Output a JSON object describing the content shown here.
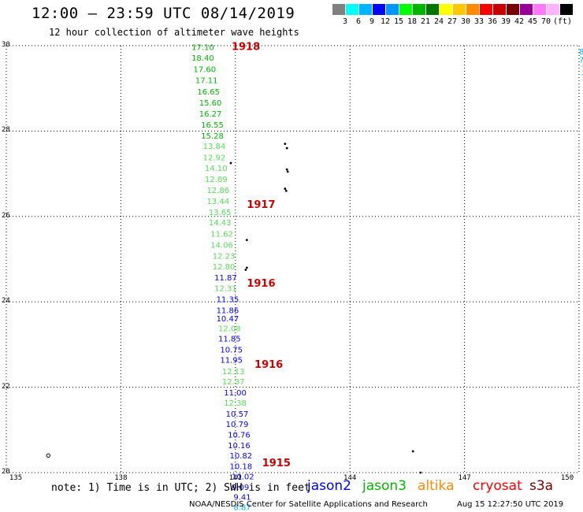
{
  "header": {
    "title": "12:00 — 23:59 UTC 08/14/2019",
    "subtitle": "12 hour collection of altimeter wave heights"
  },
  "legend": {
    "colors": [
      "#808080",
      "#00ffff",
      "#00b4ff",
      "#0000ff",
      "#0096ff",
      "#00ff00",
      "#00b400",
      "#007800",
      "#ffff00",
      "#ffc800",
      "#ff8c00",
      "#ff0000",
      "#c80000",
      "#780000",
      "#960096",
      "#ff78ff",
      "#ffb4ff",
      "#000000"
    ],
    "labels": [
      "3",
      "6",
      "9",
      "12",
      "15",
      "18",
      "21",
      "24",
      "27",
      "30",
      "33",
      "36",
      "39",
      "42",
      "45",
      "70"
    ],
    "unit": "(ft)"
  },
  "axes": {
    "y_ticks": [
      "30",
      "28",
      "26",
      "24",
      "22",
      "20"
    ],
    "x_ticks": [
      "135",
      "138",
      "141",
      "144",
      "147",
      "150"
    ]
  },
  "track_labels": [
    {
      "text": "1918",
      "lon": 140.9,
      "lat": 29.9
    },
    {
      "text": "1917",
      "lon": 141.3,
      "lat": 26.2
    },
    {
      "text": "1916",
      "lon": 141.3,
      "lat": 24.35
    },
    {
      "text": "1916",
      "lon": 141.5,
      "lat": 22.45
    },
    {
      "text": "1915",
      "lon": 141.7,
      "lat": 20.15
    }
  ],
  "wave_heights": [
    {
      "v": "17.10",
      "lon": 139.85,
      "lat": 29.9,
      "c": "#00b400"
    },
    {
      "v": "18.40",
      "lon": 139.85,
      "lat": 29.65,
      "c": "#00b400"
    },
    {
      "v": "17.60",
      "lon": 139.9,
      "lat": 29.38,
      "c": "#00b400"
    },
    {
      "v": "17.11",
      "lon": 139.95,
      "lat": 29.12,
      "c": "#00b400"
    },
    {
      "v": "16.65",
      "lon": 140.0,
      "lat": 28.86,
      "c": "#00b400"
    },
    {
      "v": "15.60",
      "lon": 140.05,
      "lat": 28.6,
      "c": "#00b400"
    },
    {
      "v": "16.27",
      "lon": 140.05,
      "lat": 28.34,
      "c": "#00b400"
    },
    {
      "v": "16.55",
      "lon": 140.1,
      "lat": 28.08,
      "c": "#00b400"
    },
    {
      "v": "15.28",
      "lon": 140.1,
      "lat": 27.82,
      "c": "#00b400"
    },
    {
      "v": "13.84",
      "lon": 140.15,
      "lat": 27.58,
      "c": "#55dd55"
    },
    {
      "v": "12.92",
      "lon": 140.15,
      "lat": 27.32,
      "c": "#55dd55"
    },
    {
      "v": "14.10",
      "lon": 140.2,
      "lat": 27.07,
      "c": "#55dd55"
    },
    {
      "v": "12.89",
      "lon": 140.2,
      "lat": 26.81,
      "c": "#55dd55"
    },
    {
      "v": "12.86",
      "lon": 140.25,
      "lat": 26.55,
      "c": "#55dd55"
    },
    {
      "v": "13.44",
      "lon": 140.25,
      "lat": 26.29,
      "c": "#55dd55"
    },
    {
      "v": "13.65",
      "lon": 140.3,
      "lat": 26.03,
      "c": "#55dd55"
    },
    {
      "v": "14.43",
      "lon": 140.3,
      "lat": 25.79,
      "c": "#55dd55"
    },
    {
      "v": "11.62",
      "lon": 140.35,
      "lat": 25.53,
      "c": "#55dd55"
    },
    {
      "v": "14.06",
      "lon": 140.35,
      "lat": 25.27,
      "c": "#55dd55"
    },
    {
      "v": "12.23",
      "lon": 140.4,
      "lat": 25.01,
      "c": "#55dd55"
    },
    {
      "v": "12.80",
      "lon": 140.4,
      "lat": 24.76,
      "c": "#55dd55"
    },
    {
      "v": "11.87",
      "lon": 140.45,
      "lat": 24.5,
      "c": "#0000ff"
    },
    {
      "v": "12.31",
      "lon": 140.45,
      "lat": 24.25,
      "c": "#55dd55"
    },
    {
      "v": "11.35",
      "lon": 140.5,
      "lat": 23.99,
      "c": "#0000ff"
    },
    {
      "v": "11.86",
      "lon": 140.5,
      "lat": 23.74,
      "c": "#0000ff"
    },
    {
      "v": "10.47",
      "lon": 140.5,
      "lat": 23.54,
      "c": "#0000ff"
    },
    {
      "v": "12.08",
      "lon": 140.55,
      "lat": 23.31,
      "c": "#55dd55"
    },
    {
      "v": "11.85",
      "lon": 140.55,
      "lat": 23.07,
      "c": "#0000ff"
    },
    {
      "v": "10.75",
      "lon": 140.6,
      "lat": 22.81,
      "c": "#0000ff"
    },
    {
      "v": "11.95",
      "lon": 140.6,
      "lat": 22.57,
      "c": "#0000ff"
    },
    {
      "v": "12.13",
      "lon": 140.65,
      "lat": 22.31,
      "c": "#55dd55"
    },
    {
      "v": "12.37",
      "lon": 140.65,
      "lat": 22.07,
      "c": "#55dd55"
    },
    {
      "v": "11.00",
      "lon": 140.7,
      "lat": 21.81,
      "c": "#0000ff"
    },
    {
      "v": "12.38",
      "lon": 140.7,
      "lat": 21.57,
      "c": "#55dd55"
    },
    {
      "v": "10.57",
      "lon": 140.75,
      "lat": 21.31,
      "c": "#0000ff"
    },
    {
      "v": "10.79",
      "lon": 140.75,
      "lat": 21.07,
      "c": "#0000ff"
    },
    {
      "v": "10.76",
      "lon": 140.8,
      "lat": 20.82,
      "c": "#0000ff"
    },
    {
      "v": "10.16",
      "lon": 140.8,
      "lat": 20.57,
      "c": "#0000ff"
    },
    {
      "v": "10.82",
      "lon": 140.85,
      "lat": 20.33,
      "c": "#0000ff"
    },
    {
      "v": "10.18",
      "lon": 140.85,
      "lat": 20.08,
      "c": "#0000ff"
    },
    {
      "v": "10.02",
      "lon": 140.9,
      "lat": 19.84,
      "c": "#0000ff"
    },
    {
      "v": "9.09",
      "lon": 140.9,
      "lat": 19.59,
      "c": "#0000ff"
    },
    {
      "v": "9.41",
      "lon": 140.95,
      "lat": 19.36,
      "c": "#0000ff"
    },
    {
      "v": "8.87",
      "lon": 140.95,
      "lat": 19.12,
      "c": "#00b4ff"
    }
  ],
  "right_edge_values": [
    {
      "v": "8.5",
      "lon": 150.0,
      "lat": 29.8,
      "c": "#00b4ff"
    },
    {
      "v": "7.5",
      "lon": 150.0,
      "lat": 29.6,
      "c": "#00b4ff"
    },
    {
      "v": "7.",
      "lon": 150.05,
      "lat": 29.4,
      "c": "#00b4ff"
    },
    {
      "v": "7.",
      "lon": 150.05,
      "lat": 29.2,
      "c": "#00b4ff"
    },
    {
      "v": "7",
      "lon": 150.1,
      "lat": 29.0,
      "c": "#00b4ff"
    },
    {
      "v": "1",
      "lon": 150.15,
      "lat": 28.8,
      "c": "#00b4ff"
    },
    {
      "v": "1",
      "lon": 150.15,
      "lat": 20.1,
      "c": "#00b4ff"
    }
  ],
  "islands": [
    {
      "lon": 142.3,
      "lat": 27.7
    },
    {
      "lon": 142.35,
      "lat": 27.6
    },
    {
      "lon": 142.35,
      "lat": 27.1
    },
    {
      "lon": 142.37,
      "lat": 27.05
    },
    {
      "lon": 142.3,
      "lat": 26.65
    },
    {
      "lon": 142.33,
      "lat": 26.6
    },
    {
      "lon": 140.88,
      "lat": 27.25
    },
    {
      "lon": 141.3,
      "lat": 25.45
    },
    {
      "lon": 141.3,
      "lat": 24.8
    },
    {
      "lon": 141.27,
      "lat": 24.75
    },
    {
      "lon": 145.65,
      "lat": 20.5
    },
    {
      "lon": 145.85,
      "lat": 20.0
    }
  ],
  "open_islands": [
    {
      "lon": 136.1,
      "lat": 20.4
    }
  ],
  "footer": {
    "note": "note: 1) Time is in UTC; 2) SWH is in feet",
    "satellites": [
      {
        "name": "jason2",
        "color": "#0000ff"
      },
      {
        "name": "jason3",
        "color": "#00b400"
      },
      {
        "name": "altika",
        "color": "#ff8c00"
      },
      {
        "name": "cryosat",
        "color": "#ff0000"
      },
      {
        "name": "s3a",
        "color": "#780000"
      }
    ],
    "credit": "NOAA/NESDIS Center for Satellite Applications and Research",
    "timestamp": "Aug 15 12:27:50 UTC 2019"
  }
}
